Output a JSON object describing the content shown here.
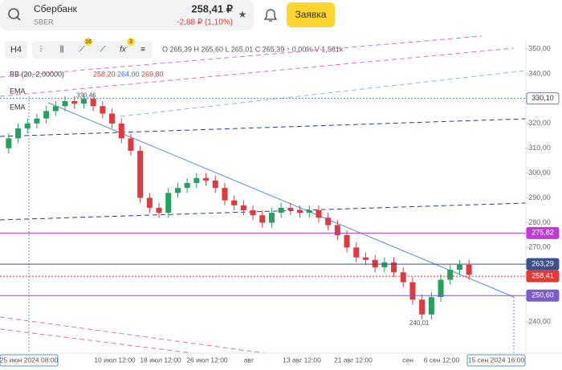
{
  "header": {
    "name": "Сбербанк",
    "ticker": "SBER",
    "price": "258,41 ₽",
    "change": "-2,88 ₽ (1,10%)",
    "button": "Заявка"
  },
  "toolbar": {
    "interval": "H4",
    "badge_drawings": "16",
    "badge_indicators": "3",
    "ohlc": "O 265,39 H 265,60 L 265,01 C 265,39 ↑ 0,00% V 1,581k"
  },
  "indicators": {
    "bb_label": "BB (20, 2,00000)",
    "bb_lower": "258,20",
    "bb_middle": "264,00",
    "bb_upper": "269,80",
    "ema1": "EMA",
    "ema2": "EMA"
  },
  "chart_data": {
    "type": "candlestick",
    "open": [
      310,
      314,
      318,
      320,
      322,
      325,
      327,
      329,
      328,
      330,
      327,
      324,
      320,
      314,
      309,
      290,
      286,
      284,
      292,
      294,
      296,
      298,
      297,
      294,
      289,
      287,
      285,
      283,
      280,
      284,
      286,
      285,
      284,
      285,
      282,
      279,
      275,
      270,
      266,
      265,
      262,
      264,
      260,
      256,
      249,
      243,
      250,
      257,
      261,
      263
    ],
    "high": [
      316,
      320,
      322,
      324,
      327,
      329,
      331,
      331,
      332,
      332,
      329,
      326,
      322,
      316,
      311,
      292,
      288,
      294,
      296,
      298,
      300,
      300,
      299,
      296,
      291,
      289,
      287,
      285,
      286,
      288,
      288,
      287,
      287,
      287,
      284,
      281,
      277,
      272,
      268,
      267,
      266,
      266,
      262,
      258,
      251,
      252,
      259,
      263,
      265,
      265
    ],
    "low": [
      308,
      312,
      316,
      318,
      320,
      323,
      325,
      326,
      326,
      325,
      322,
      318,
      312,
      307,
      288,
      284,
      282,
      282,
      290,
      292,
      294,
      295,
      292,
      287,
      285,
      283,
      281,
      278,
      278,
      282,
      283,
      282,
      282,
      280,
      277,
      273,
      268,
      264,
      263,
      260,
      260,
      258,
      254,
      247,
      241,
      241,
      248,
      255,
      259,
      257
    ],
    "close": [
      314,
      318,
      320,
      322,
      325,
      327,
      329,
      328,
      330,
      327,
      324,
      320,
      314,
      309,
      290,
      286,
      284,
      292,
      294,
      296,
      298,
      297,
      294,
      289,
      287,
      285,
      283,
      280,
      284,
      286,
      285,
      284,
      285,
      282,
      279,
      275,
      270,
      266,
      265,
      262,
      264,
      260,
      256,
      249,
      243,
      250,
      257,
      261,
      263,
      259
    ],
    "up_color": "#26a05e",
    "down_color": "#e0393e",
    "ylim": [
      227.4,
      353.6
    ],
    "yticks": [
      {
        "value": 350,
        "label": "350,00"
      },
      {
        "value": 340,
        "label": "340,00"
      },
      {
        "value": 330,
        "label": "330,00"
      },
      {
        "value": 320,
        "label": "320,00"
      },
      {
        "value": 310,
        "label": "310,00"
      },
      {
        "value": 300,
        "label": "300,00"
      },
      {
        "value": 290,
        "label": "290,00"
      },
      {
        "value": 280,
        "label": "280,00"
      },
      {
        "value": 270,
        "label": "270,00"
      },
      {
        "value": 260,
        "label": "260,00"
      },
      {
        "value": 250,
        "label": "250,00"
      },
      {
        "value": 240,
        "label": "240,00"
      }
    ],
    "x_labels": [
      "25 июн 2024 08:00",
      "10 июл 12:00",
      "18 июл 12:00",
      "26 июл 12:00",
      "авг",
      "13 авг 12:00",
      "21 авг 12:00",
      "сен",
      "6 сен 12:00",
      "15 сен 2024 16:00"
    ],
    "price_lines": [
      {
        "value": 330.1,
        "label": "330,10",
        "color": "#5b7fd6"
      },
      {
        "value": 275.82,
        "label": "275,82",
        "color": "#c03ad6"
      },
      {
        "value": 263.29,
        "label": "263,29",
        "color": "#3c4f8f"
      },
      {
        "value": 258.41,
        "label": "258,41",
        "color": "#e53935"
      },
      {
        "value": 250.6,
        "label": "250,60",
        "color": "#7b5cc9"
      }
    ],
    "annotations": [
      {
        "value": 330.46,
        "label": "330,46"
      },
      {
        "value": 240.01,
        "label": "240,01"
      }
    ]
  }
}
